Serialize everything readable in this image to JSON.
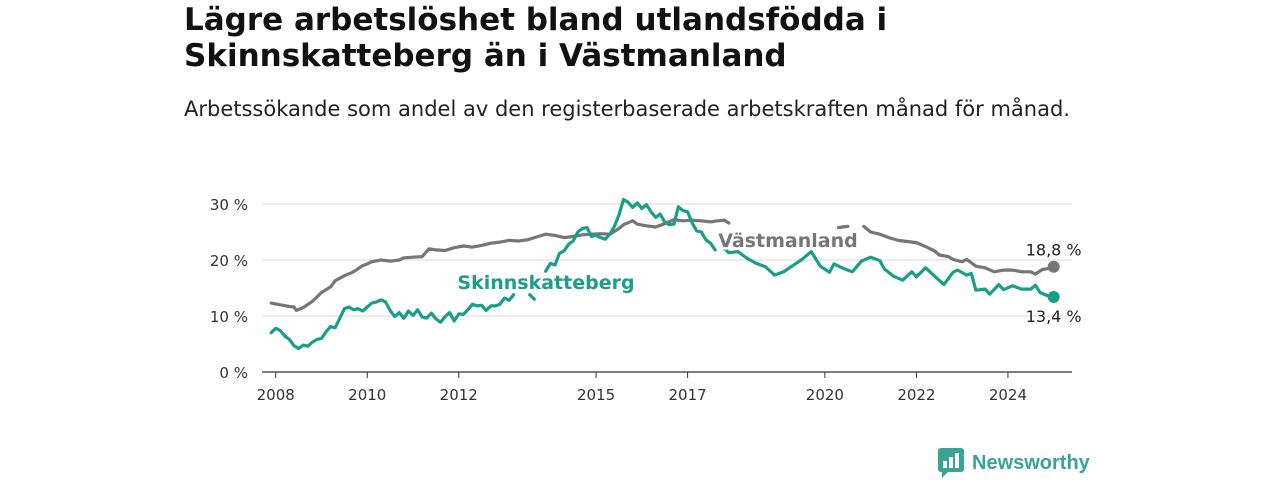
{
  "header": {
    "title": "Lägre arbetslöshet bland utlandsfödda i Skinnskatteberg än i Västmanland",
    "subtitle": "Arbetssökande som andel av den registerbaserade arbetskraften månad för månad."
  },
  "brand": {
    "name": "Newsworthy",
    "icon": "bar-chart-logo-icon",
    "color": "#3aa396"
  },
  "chart_data": {
    "type": "line",
    "title": "",
    "xlabel": "",
    "ylabel": "",
    "xlim": [
      2007.7,
      2025.4
    ],
    "ylim": [
      0,
      30
    ],
    "x_ticks": [
      "2008",
      "2010",
      "2012",
      "2015",
      "2017",
      "2020",
      "2022",
      "2024"
    ],
    "y_ticks": [
      {
        "value": 0,
        "label": "0 %"
      },
      {
        "value": 10,
        "label": "10 %"
      },
      {
        "value": 20,
        "label": "20 %"
      },
      {
        "value": 30,
        "label": "30 %"
      }
    ],
    "grid": true,
    "series": [
      {
        "name": "Västmanland",
        "color": "#767676",
        "end_label": "18,8 %",
        "points": [
          [
            2007.9,
            12.3
          ],
          [
            2008.1,
            12.0
          ],
          [
            2008.3,
            11.7
          ],
          [
            2008.4,
            11.6
          ],
          [
            2008.45,
            11.0
          ],
          [
            2008.6,
            11.5
          ],
          [
            2008.8,
            12.6
          ],
          [
            2009.0,
            14.2
          ],
          [
            2009.2,
            15.2
          ],
          [
            2009.3,
            16.3
          ],
          [
            2009.5,
            17.2
          ],
          [
            2009.7,
            17.9
          ],
          [
            2009.9,
            19.0
          ],
          [
            2010.0,
            19.3
          ],
          [
            2010.1,
            19.7
          ],
          [
            2010.3,
            20.0
          ],
          [
            2010.5,
            19.8
          ],
          [
            2010.7,
            20.0
          ],
          [
            2010.8,
            20.4
          ],
          [
            2011.0,
            20.5
          ],
          [
            2011.2,
            20.6
          ],
          [
            2011.35,
            22.0
          ],
          [
            2011.5,
            21.8
          ],
          [
            2011.7,
            21.7
          ],
          [
            2011.9,
            22.2
          ],
          [
            2012.1,
            22.5
          ],
          [
            2012.3,
            22.3
          ],
          [
            2012.5,
            22.6
          ],
          [
            2012.7,
            23.0
          ],
          [
            2012.9,
            23.2
          ],
          [
            2013.1,
            23.5
          ],
          [
            2013.3,
            23.4
          ],
          [
            2013.5,
            23.6
          ],
          [
            2013.7,
            24.1
          ],
          [
            2013.9,
            24.6
          ],
          [
            2014.1,
            24.4
          ],
          [
            2014.3,
            24.0
          ],
          [
            2014.5,
            24.2
          ],
          [
            2014.7,
            24.5
          ],
          [
            2014.9,
            24.6
          ],
          [
            2015.1,
            24.7
          ],
          [
            2015.3,
            24.6
          ],
          [
            2015.5,
            25.6
          ],
          [
            2015.6,
            26.3
          ],
          [
            2015.8,
            27.0
          ],
          [
            2015.9,
            26.4
          ],
          [
            2016.1,
            26.1
          ],
          [
            2016.3,
            25.9
          ],
          [
            2016.5,
            26.5
          ],
          [
            2016.7,
            27.2
          ],
          [
            2016.9,
            27.0
          ],
          [
            2017.1,
            27.1
          ],
          [
            2017.3,
            27.0
          ],
          [
            2017.5,
            26.8
          ],
          [
            2017.65,
            27.0
          ],
          [
            2017.8,
            27.1
          ],
          [
            2017.9,
            26.6
          ],
          [
            null,
            null
          ],
          [
            2020.3,
            25.8
          ],
          [
            2020.5,
            26.0
          ],
          [
            null,
            null
          ],
          [
            2020.85,
            26.0
          ],
          [
            2021.0,
            25.0
          ],
          [
            2021.2,
            24.6
          ],
          [
            2021.4,
            24.0
          ],
          [
            2021.6,
            23.5
          ],
          [
            2021.8,
            23.3
          ],
          [
            2022.0,
            23.1
          ],
          [
            2022.2,
            22.4
          ],
          [
            2022.4,
            21.6
          ],
          [
            2022.5,
            20.9
          ],
          [
            2022.7,
            20.6
          ],
          [
            2022.8,
            20.1
          ],
          [
            2023.0,
            19.7
          ],
          [
            2023.1,
            20.1
          ],
          [
            2023.3,
            18.9
          ],
          [
            2023.5,
            18.6
          ],
          [
            2023.7,
            17.9
          ],
          [
            2023.9,
            18.2
          ],
          [
            2024.1,
            18.2
          ],
          [
            2024.3,
            17.9
          ],
          [
            2024.5,
            17.9
          ],
          [
            2024.6,
            17.5
          ],
          [
            2024.75,
            18.3
          ],
          [
            2024.9,
            18.5
          ],
          [
            2025.0,
            18.8
          ]
        ]
      },
      {
        "name": "Skinnskatteberg",
        "color": "#1a9e8a",
        "end_label": "13,4 %",
        "points": [
          [
            2007.9,
            7.0
          ],
          [
            2008.0,
            7.8
          ],
          [
            2008.1,
            7.4
          ],
          [
            2008.2,
            6.4
          ],
          [
            2008.3,
            5.8
          ],
          [
            2008.4,
            4.7
          ],
          [
            2008.5,
            4.2
          ],
          [
            2008.6,
            4.8
          ],
          [
            2008.7,
            4.6
          ],
          [
            2008.8,
            5.3
          ],
          [
            2008.9,
            5.8
          ],
          [
            2009.0,
            6.0
          ],
          [
            2009.1,
            7.2
          ],
          [
            2009.2,
            8.1
          ],
          [
            2009.3,
            7.9
          ],
          [
            2009.4,
            9.6
          ],
          [
            2009.5,
            11.3
          ],
          [
            2009.6,
            11.6
          ],
          [
            2009.7,
            11.1
          ],
          [
            2009.8,
            11.3
          ],
          [
            2009.9,
            10.9
          ],
          [
            2010.0,
            11.6
          ],
          [
            2010.1,
            12.3
          ],
          [
            2010.2,
            12.5
          ],
          [
            2010.3,
            12.9
          ],
          [
            2010.4,
            12.5
          ],
          [
            2010.5,
            11.0
          ],
          [
            2010.6,
            9.9
          ],
          [
            2010.7,
            10.6
          ],
          [
            2010.8,
            9.6
          ],
          [
            2010.9,
            10.9
          ],
          [
            2011.0,
            10.1
          ],
          [
            2011.1,
            11.1
          ],
          [
            2011.2,
            9.8
          ],
          [
            2011.3,
            9.6
          ],
          [
            2011.4,
            10.5
          ],
          [
            2011.5,
            9.5
          ],
          [
            2011.6,
            8.9
          ],
          [
            2011.7,
            9.9
          ],
          [
            2011.8,
            10.6
          ],
          [
            2011.9,
            9.1
          ],
          [
            2012.0,
            10.4
          ],
          [
            2012.1,
            10.3
          ],
          [
            2012.2,
            11.1
          ],
          [
            2012.3,
            12.1
          ],
          [
            2012.4,
            11.8
          ],
          [
            2012.5,
            11.9
          ],
          [
            2012.6,
            11.0
          ],
          [
            2012.7,
            11.8
          ],
          [
            2012.8,
            11.8
          ],
          [
            2012.9,
            12.1
          ],
          [
            2013.0,
            13.2
          ],
          [
            2013.1,
            12.8
          ],
          [
            2013.2,
            13.8
          ],
          [
            null,
            null
          ],
          [
            2013.55,
            13.8
          ],
          [
            2013.65,
            13.0
          ],
          [
            null,
            null
          ],
          [
            2013.9,
            18.0
          ],
          [
            2014.0,
            19.4
          ],
          [
            2014.1,
            19.1
          ],
          [
            2014.2,
            21.2
          ],
          [
            2014.3,
            21.6
          ],
          [
            2014.4,
            22.8
          ],
          [
            2014.5,
            23.4
          ],
          [
            2014.6,
            25.0
          ],
          [
            2014.7,
            25.6
          ],
          [
            2014.8,
            25.8
          ],
          [
            2014.9,
            24.2
          ],
          [
            2015.0,
            24.4
          ],
          [
            2015.1,
            24.0
          ],
          [
            2015.2,
            23.7
          ],
          [
            2015.3,
            24.6
          ],
          [
            2015.4,
            26.0
          ],
          [
            2015.5,
            28.0
          ],
          [
            2015.6,
            30.8
          ],
          [
            2015.7,
            30.3
          ],
          [
            2015.8,
            29.4
          ],
          [
            2015.9,
            30.2
          ],
          [
            2016.0,
            29.2
          ],
          [
            2016.1,
            29.9
          ],
          [
            2016.2,
            28.6
          ],
          [
            2016.3,
            27.6
          ],
          [
            2016.4,
            28.2
          ],
          [
            2016.5,
            26.8
          ],
          [
            2016.6,
            26.3
          ],
          [
            2016.7,
            26.4
          ],
          [
            2016.8,
            29.5
          ],
          [
            2016.9,
            28.8
          ],
          [
            2017.0,
            28.6
          ],
          [
            2017.1,
            26.6
          ],
          [
            2017.2,
            25.2
          ],
          [
            2017.3,
            25.0
          ],
          [
            2017.4,
            23.6
          ],
          [
            2017.5,
            23.0
          ],
          [
            2017.6,
            21.8
          ],
          [
            null,
            null
          ],
          [
            2017.8,
            22.1
          ],
          [
            2017.9,
            21.3
          ],
          [
            2018.1,
            21.5
          ],
          [
            2018.3,
            20.3
          ],
          [
            2018.5,
            19.4
          ],
          [
            2018.7,
            18.8
          ],
          [
            2018.9,
            17.3
          ],
          [
            2019.1,
            17.9
          ],
          [
            2019.3,
            19.0
          ],
          [
            2019.5,
            20.1
          ],
          [
            2019.7,
            21.5
          ],
          [
            2019.9,
            18.9
          ],
          [
            2020.1,
            17.8
          ],
          [
            2020.2,
            19.3
          ],
          [
            2020.4,
            18.5
          ],
          [
            2020.6,
            17.9
          ],
          [
            2020.8,
            19.8
          ],
          [
            2021.0,
            20.5
          ],
          [
            2021.2,
            19.9
          ],
          [
            2021.3,
            18.4
          ],
          [
            2021.5,
            17.1
          ],
          [
            2021.7,
            16.4
          ],
          [
            2021.9,
            17.9
          ],
          [
            2022.0,
            17.0
          ],
          [
            2022.2,
            18.6
          ],
          [
            2022.4,
            17.1
          ],
          [
            2022.6,
            15.6
          ],
          [
            2022.8,
            17.8
          ],
          [
            2022.9,
            18.2
          ],
          [
            2023.1,
            17.3
          ],
          [
            2023.2,
            17.6
          ],
          [
            2023.3,
            14.6
          ],
          [
            2023.5,
            14.8
          ],
          [
            2023.6,
            13.9
          ],
          [
            2023.8,
            15.6
          ],
          [
            2023.9,
            14.7
          ],
          [
            2024.1,
            15.4
          ],
          [
            2024.3,
            14.8
          ],
          [
            2024.5,
            14.8
          ],
          [
            2024.6,
            15.5
          ],
          [
            2024.7,
            14.2
          ],
          [
            2024.9,
            13.5
          ],
          [
            2025.0,
            13.4
          ]
        ]
      }
    ],
    "annotations": [
      {
        "series": "Västmanland",
        "text": "Västmanland"
      },
      {
        "series": "Skinnskatteberg",
        "text": "Skinnskatteberg"
      }
    ]
  }
}
